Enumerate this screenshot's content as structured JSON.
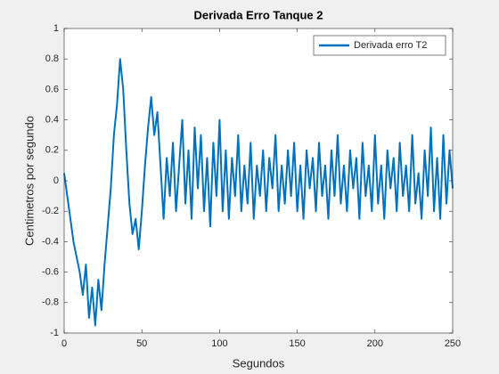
{
  "chart_data": {
    "type": "line",
    "title": "Derivada Erro Tanque 2",
    "xlabel": "Segundos",
    "ylabel": "Centimetros por segundo",
    "legend": "northeast",
    "x": [
      0,
      2,
      4,
      6,
      8,
      10,
      12,
      14,
      16,
      18,
      20,
      22,
      24,
      26,
      28,
      30,
      32,
      34,
      36,
      38,
      40,
      42,
      44,
      46,
      48,
      50,
      52,
      54,
      56,
      58,
      60,
      62,
      64,
      66,
      68,
      70,
      72,
      74,
      76,
      78,
      80,
      82,
      84,
      86,
      88,
      90,
      92,
      94,
      96,
      98,
      100,
      102,
      104,
      106,
      108,
      110,
      112,
      114,
      116,
      118,
      120,
      122,
      124,
      126,
      128,
      130,
      132,
      134,
      136,
      138,
      140,
      142,
      144,
      146,
      148,
      150,
      152,
      154,
      156,
      158,
      160,
      162,
      164,
      166,
      168,
      170,
      172,
      174,
      176,
      178,
      180,
      182,
      184,
      186,
      188,
      190,
      192,
      194,
      196,
      198,
      200,
      202,
      204,
      206,
      208,
      210,
      212,
      214,
      216,
      218,
      220,
      222,
      224,
      226,
      228,
      230,
      232,
      234,
      236,
      238,
      240,
      242,
      244,
      246,
      248,
      250
    ],
    "series": [
      {
        "name": "Derivada erro T2",
        "color": "#0072bd",
        "values": [
          0.05,
          -0.1,
          -0.25,
          -0.4,
          -0.5,
          -0.6,
          -0.75,
          -0.55,
          -0.9,
          -0.7,
          -0.95,
          -0.65,
          -0.85,
          -0.55,
          -0.3,
          -0.05,
          0.3,
          0.5,
          0.8,
          0.6,
          0.2,
          -0.15,
          -0.35,
          -0.25,
          -0.45,
          -0.2,
          0.1,
          0.35,
          0.55,
          0.3,
          0.45,
          0.1,
          -0.25,
          0.15,
          -0.1,
          0.25,
          -0.2,
          0.1,
          0.4,
          -0.15,
          0.2,
          -0.25,
          0.35,
          -0.05,
          0.3,
          -0.2,
          0.15,
          -0.3,
          0.25,
          -0.1,
          0.4,
          -0.2,
          0.2,
          -0.25,
          0.15,
          -0.1,
          0.3,
          -0.2,
          0.1,
          -0.15,
          0.25,
          -0.25,
          0.1,
          -0.1,
          0.2,
          -0.2,
          0.15,
          -0.05,
          0.3,
          -0.2,
          0.1,
          -0.15,
          0.2,
          -0.1,
          0.25,
          -0.2,
          0.1,
          -0.25,
          0.2,
          -0.05,
          0.15,
          -0.2,
          0.25,
          -0.1,
          0.1,
          -0.25,
          0.2,
          -0.1,
          0.3,
          -0.15,
          0.1,
          -0.2,
          0.2,
          -0.05,
          0.15,
          -0.25,
          0.25,
          -0.1,
          0.1,
          -0.2,
          0.3,
          -0.15,
          0.1,
          -0.25,
          0.2,
          -0.05,
          0.15,
          -0.2,
          0.25,
          -0.1,
          0.1,
          -0.2,
          0.3,
          -0.15,
          0.05,
          -0.25,
          0.2,
          -0.1,
          0.35,
          -0.2,
          0.15,
          -0.25,
          0.3,
          -0.15,
          0.2,
          -0.05
        ]
      }
    ],
    "xlim": [
      0,
      250
    ],
    "xticks": [
      0,
      50,
      100,
      150,
      200,
      250
    ],
    "ylim": [
      -1,
      1
    ],
    "yticks": [
      -1,
      -0.8,
      -0.6,
      -0.4,
      -0.2,
      0,
      0.2,
      0.4,
      0.6,
      0.8,
      1
    ]
  }
}
